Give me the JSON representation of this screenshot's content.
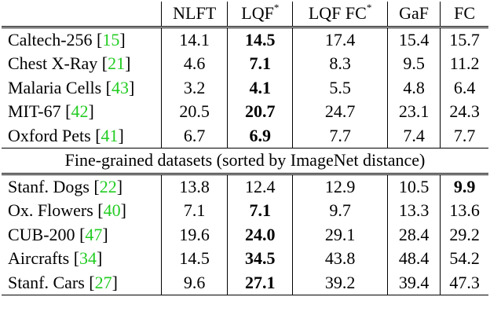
{
  "columns": [
    "NLFT",
    "LQF",
    "LQF FC",
    "GaF",
    "FC"
  ],
  "column_sup": [
    "",
    "*",
    "*",
    "",
    ""
  ],
  "section_label": "Fine-grained datasets (sorted by ImageNet distance)",
  "group1": [
    {
      "name": "Caltech-256",
      "cite": "15",
      "values": [
        "14.1",
        "14.5",
        "17.4",
        "15.4",
        "15.7"
      ],
      "bold": 1
    },
    {
      "name": "Chest X-Ray",
      "cite": "21",
      "values": [
        "4.6",
        "7.1",
        "8.3",
        "9.5",
        "11.2"
      ],
      "bold": 1
    },
    {
      "name": "Malaria Cells",
      "cite": "43",
      "values": [
        "3.2",
        "4.1",
        "5.5",
        "4.8",
        "6.4"
      ],
      "bold": 1
    },
    {
      "name": "MIT-67",
      "cite": "42",
      "values": [
        "20.5",
        "20.7",
        "24.7",
        "23.1",
        "24.3"
      ],
      "bold": 1
    },
    {
      "name": "Oxford Pets",
      "cite": "41",
      "values": [
        "6.7",
        "6.9",
        "7.7",
        "7.4",
        "7.7"
      ],
      "bold": 1
    }
  ],
  "group2": [
    {
      "name": "Stanf. Dogs",
      "cite": "22",
      "values": [
        "13.8",
        "12.4",
        "12.9",
        "10.5",
        "9.9"
      ],
      "bold": 4
    },
    {
      "name": "Ox. Flowers",
      "cite": "40",
      "values": [
        "7.1",
        "7.1",
        "9.7",
        "13.3",
        "13.6"
      ],
      "bold": 1
    },
    {
      "name": "CUB-200",
      "cite": "47",
      "values": [
        "19.6",
        "24.0",
        "29.1",
        "28.4",
        "29.2"
      ],
      "bold": 1
    },
    {
      "name": "Aircrafts",
      "cite": "34",
      "values": [
        "14.5",
        "34.5",
        "43.8",
        "48.4",
        "54.2"
      ],
      "bold": 1
    },
    {
      "name": "Stanf. Cars",
      "cite": "27",
      "values": [
        "9.6",
        "27.1",
        "39.2",
        "39.4",
        "47.3"
      ],
      "bold": 1
    }
  ]
}
